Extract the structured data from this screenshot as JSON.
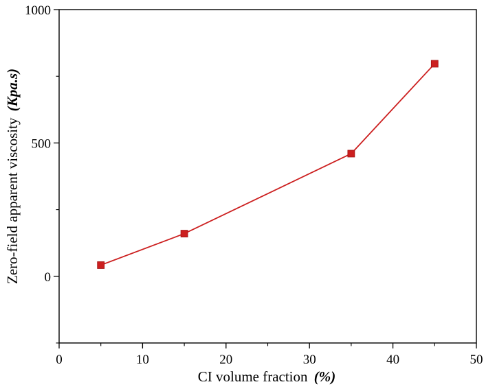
{
  "chart_data": {
    "type": "line",
    "title": "",
    "xlabel": "CI volume fraction",
    "xlabel_unit": "(%)",
    "ylabel": "Zero-field apparent viscosity",
    "ylabel_unit": "(Kpa.s)",
    "xlim": [
      0,
      50
    ],
    "ylim": [
      -250,
      1000
    ],
    "xticks": [
      0,
      10,
      20,
      30,
      40,
      50
    ],
    "yticks": [
      0,
      500,
      1000
    ],
    "xtick_labels": [
      "0",
      "10",
      "20",
      "30",
      "40",
      "50"
    ],
    "ytick_labels": [
      "0",
      "500",
      "1000"
    ],
    "grid": false,
    "legend": "none",
    "series": [
      {
        "color": "#cc1f1f",
        "marker": "square",
        "x": [
          5,
          15,
          35,
          45
        ],
        "y": [
          42,
          160,
          460,
          797
        ]
      }
    ]
  }
}
